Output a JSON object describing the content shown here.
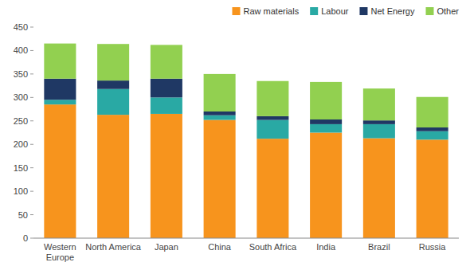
{
  "chart_data": {
    "type": "bar",
    "stacked": true,
    "categories": [
      "Western\nEurope",
      "North America",
      "Japan",
      "China",
      "South Africa",
      "India",
      "Brazil",
      "Russia"
    ],
    "series": [
      {
        "name": "Raw materials",
        "color": "#F7941D",
        "values": [
          285,
          263,
          265,
          252,
          212,
          225,
          213,
          210
        ]
      },
      {
        "name": "Labour",
        "color": "#29A9A4",
        "values": [
          10,
          55,
          35,
          10,
          40,
          18,
          30,
          18
        ]
      },
      {
        "name": "Net Energy",
        "color": "#1F3864",
        "values": [
          45,
          18,
          40,
          8,
          8,
          10,
          8,
          8
        ]
      },
      {
        "name": "Other",
        "color": "#92D050",
        "values": [
          75,
          78,
          72,
          80,
          75,
          80,
          68,
          65
        ]
      }
    ],
    "ylim": [
      0,
      450
    ],
    "yticks": [
      0,
      50,
      100,
      150,
      200,
      250,
      300,
      350,
      400,
      450
    ],
    "grid": false,
    "legend": "upper right"
  }
}
